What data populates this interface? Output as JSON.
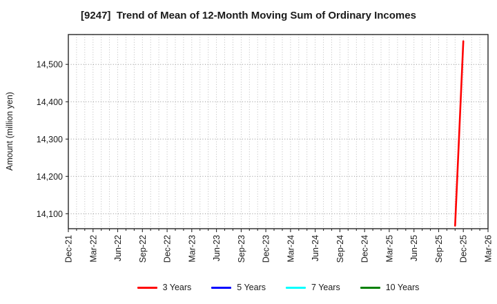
{
  "chart_data": {
    "type": "line",
    "title": "[9247]  Trend of Mean of 12-Month Moving Sum of Ordinary Incomes",
    "ylabel": "Amount (million yen)",
    "xlabel": "",
    "x_axis": {
      "unit": "month",
      "start": "Dec-21",
      "end": "Mar-26",
      "ticklabels": [
        "Dec-21",
        "Mar-22",
        "Jun-22",
        "Sep-22",
        "Dec-22",
        "Mar-23",
        "Jun-23",
        "Sep-23",
        "Dec-23",
        "Mar-24",
        "Jun-24",
        "Sep-24",
        "Dec-24",
        "Mar-25",
        "Jun-25",
        "Sep-25",
        "Dec-25",
        "Mar-26"
      ],
      "minor_gridlines": "monthly"
    },
    "ylim": [
      14060,
      14580
    ],
    "yticks": [
      14100,
      14200,
      14300,
      14400,
      14500
    ],
    "ytick_labels": [
      "14,100",
      "14,200",
      "14,300",
      "14,400",
      "14,500"
    ],
    "grid": true,
    "legend_position": "bottom",
    "series": [
      {
        "name": "3 Years",
        "color": "#ff0000",
        "points": [
          [
            "Nov-25",
            14068
          ],
          [
            "Dec-25",
            14562
          ]
        ]
      },
      {
        "name": "5 Years",
        "color": "#0000ff",
        "points": []
      },
      {
        "name": "7 Years",
        "color": "#00ffff",
        "points": []
      },
      {
        "name": "10 Years",
        "color": "#008000",
        "points": []
      }
    ],
    "colors": {
      "background": "#ffffff",
      "frame": "#262626",
      "grid_minor": "#b3b3b3",
      "grid_major": "#8f8f8f",
      "text": "#1a1a1a"
    }
  }
}
